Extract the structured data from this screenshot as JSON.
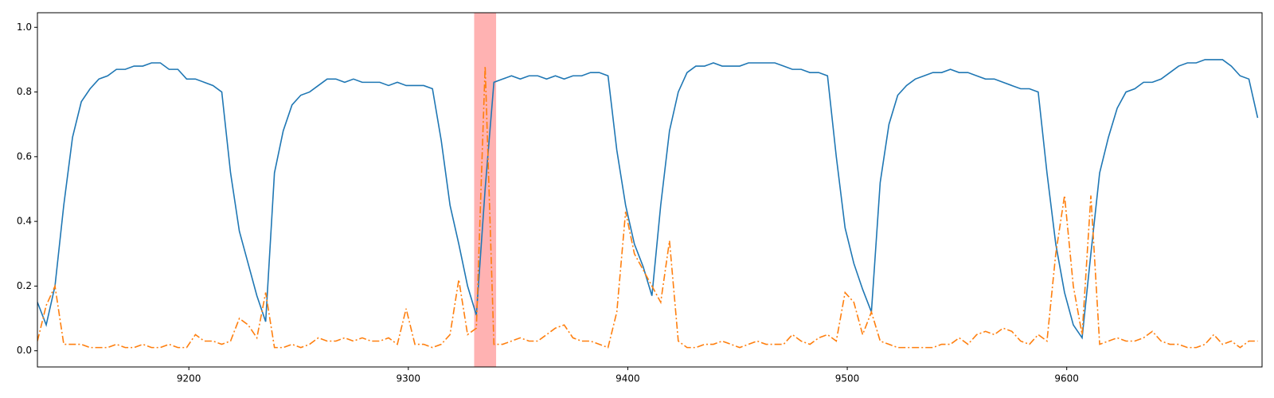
{
  "chart_data": {
    "type": "line",
    "x": [
      9131,
      9135,
      9139,
      9143,
      9147,
      9151,
      9155,
      9159,
      9163,
      9167,
      9171,
      9175,
      9179,
      9183,
      9187,
      9191,
      9195,
      9199,
      9203,
      9207,
      9211,
      9215,
      9219,
      9223,
      9227,
      9231,
      9235,
      9239,
      9243,
      9247,
      9251,
      9255,
      9259,
      9263,
      9267,
      9271,
      9275,
      9279,
      9283,
      9287,
      9291,
      9295,
      9299,
      9303,
      9307,
      9311,
      9315,
      9319,
      9323,
      9327,
      9331,
      9335,
      9339,
      9343,
      9347,
      9351,
      9355,
      9359,
      9363,
      9367,
      9371,
      9375,
      9379,
      9383,
      9387,
      9391,
      9395,
      9399,
      9403,
      9407,
      9411,
      9415,
      9419,
      9423,
      9427,
      9431,
      9435,
      9439,
      9443,
      9447,
      9451,
      9455,
      9459,
      9463,
      9467,
      9471,
      9475,
      9479,
      9483,
      9487,
      9491,
      9495,
      9499,
      9503,
      9507,
      9511,
      9515,
      9519,
      9523,
      9527,
      9531,
      9535,
      9539,
      9543,
      9547,
      9551,
      9555,
      9559,
      9563,
      9567,
      9571,
      9575,
      9579,
      9583,
      9587,
      9591,
      9595,
      9599,
      9603,
      9607,
      9611,
      9615,
      9619,
      9623,
      9627,
      9631,
      9635,
      9639,
      9643,
      9647,
      9651,
      9655,
      9659,
      9663,
      9667,
      9671,
      9675,
      9679,
      9683,
      9687
    ],
    "series": [
      {
        "color": "#1f77b4",
        "style": "solid",
        "values": [
          0.15,
          0.08,
          0.2,
          0.45,
          0.66,
          0.77,
          0.81,
          0.84,
          0.85,
          0.87,
          0.87,
          0.88,
          0.88,
          0.89,
          0.89,
          0.87,
          0.87,
          0.84,
          0.84,
          0.83,
          0.82,
          0.8,
          0.55,
          0.37,
          0.27,
          0.17,
          0.09,
          0.55,
          0.68,
          0.76,
          0.79,
          0.8,
          0.82,
          0.84,
          0.84,
          0.83,
          0.84,
          0.83,
          0.83,
          0.83,
          0.82,
          0.83,
          0.82,
          0.82,
          0.82,
          0.81,
          0.65,
          0.45,
          0.33,
          0.2,
          0.11,
          0.5,
          0.83,
          0.84,
          0.85,
          0.84,
          0.85,
          0.85,
          0.84,
          0.85,
          0.84,
          0.85,
          0.85,
          0.86,
          0.86,
          0.85,
          0.62,
          0.45,
          0.33,
          0.26,
          0.17,
          0.45,
          0.68,
          0.8,
          0.86,
          0.88,
          0.88,
          0.89,
          0.88,
          0.88,
          0.88,
          0.89,
          0.89,
          0.89,
          0.89,
          0.88,
          0.87,
          0.87,
          0.86,
          0.86,
          0.85,
          0.6,
          0.38,
          0.27,
          0.19,
          0.12,
          0.52,
          0.7,
          0.79,
          0.82,
          0.84,
          0.85,
          0.86,
          0.86,
          0.87,
          0.86,
          0.86,
          0.85,
          0.84,
          0.84,
          0.83,
          0.82,
          0.81,
          0.81,
          0.8,
          0.55,
          0.33,
          0.18,
          0.08,
          0.04,
          0.3,
          0.55,
          0.66,
          0.75,
          0.8,
          0.81,
          0.83,
          0.83,
          0.84,
          0.86,
          0.88,
          0.89,
          0.89,
          0.9,
          0.9,
          0.9,
          0.88,
          0.85,
          0.84,
          0.72
        ]
      },
      {
        "color": "#ff7f0e",
        "style": "dashdot",
        "values": [
          0.03,
          0.14,
          0.2,
          0.02,
          0.02,
          0.02,
          0.01,
          0.01,
          0.01,
          0.02,
          0.01,
          0.01,
          0.02,
          0.01,
          0.01,
          0.02,
          0.01,
          0.01,
          0.05,
          0.03,
          0.03,
          0.02,
          0.03,
          0.1,
          0.08,
          0.04,
          0.18,
          0.01,
          0.01,
          0.02,
          0.01,
          0.02,
          0.04,
          0.03,
          0.03,
          0.04,
          0.03,
          0.04,
          0.03,
          0.03,
          0.04,
          0.02,
          0.13,
          0.02,
          0.02,
          0.01,
          0.02,
          0.05,
          0.22,
          0.05,
          0.07,
          0.88,
          0.02,
          0.02,
          0.03,
          0.04,
          0.03,
          0.03,
          0.05,
          0.07,
          0.08,
          0.04,
          0.03,
          0.03,
          0.02,
          0.01,
          0.12,
          0.43,
          0.3,
          0.25,
          0.2,
          0.15,
          0.34,
          0.03,
          0.01,
          0.01,
          0.02,
          0.02,
          0.03,
          0.02,
          0.01,
          0.02,
          0.03,
          0.02,
          0.02,
          0.02,
          0.05,
          0.03,
          0.02,
          0.04,
          0.05,
          0.03,
          0.18,
          0.15,
          0.05,
          0.12,
          0.03,
          0.02,
          0.01,
          0.01,
          0.01,
          0.01,
          0.01,
          0.02,
          0.02,
          0.04,
          0.02,
          0.05,
          0.06,
          0.05,
          0.07,
          0.06,
          0.03,
          0.02,
          0.05,
          0.03,
          0.3,
          0.48,
          0.2,
          0.05,
          0.48,
          0.02,
          0.03,
          0.04,
          0.03,
          0.03,
          0.04,
          0.06,
          0.03,
          0.02,
          0.02,
          0.01,
          0.01,
          0.02,
          0.05,
          0.02,
          0.03,
          0.01,
          0.03,
          0.03
        ]
      }
    ],
    "span": [
      9330,
      9340
    ],
    "span_color": "#ff7f7f",
    "xlim": [
      9131,
      9689
    ],
    "ylim": [
      -0.05,
      1.045
    ],
    "xticks": [
      9200,
      9300,
      9400,
      9500,
      9600
    ],
    "yticks": [
      {
        "value": 0,
        "label": "0.0"
      },
      0.2,
      0.4,
      0.6,
      0.8,
      {
        "value": 1,
        "label": "1.0"
      }
    ]
  }
}
